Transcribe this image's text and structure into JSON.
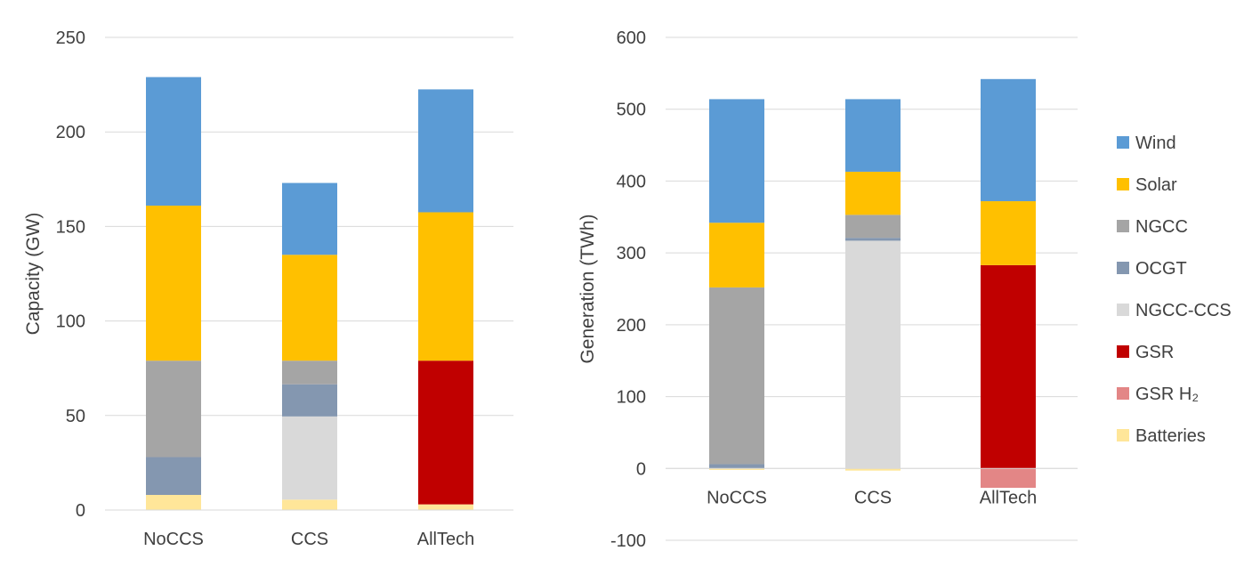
{
  "legend_placement": "right",
  "legend": [
    {
      "name": "Wind",
      "color": "#5b9bd5"
    },
    {
      "name": "Solar",
      "color": "#ffc000"
    },
    {
      "name": "NGCC",
      "color": "#a5a5a5"
    },
    {
      "name": "OCGT",
      "color": "#8497b0"
    },
    {
      "name": "NGCC-CCS",
      "color": "#d9d9d9"
    },
    {
      "name": "GSR",
      "color": "#c00000"
    },
    {
      "name": "GSR H₂",
      "color": "#e38686"
    },
    {
      "name": "Batteries",
      "color": "#ffe699"
    }
  ],
  "chart_data": [
    {
      "type": "bar",
      "stacked": true,
      "title": "",
      "xlabel": "",
      "ylabel": "Capacity (GW)",
      "ylim": [
        0,
        250
      ],
      "yticks": [
        0,
        50,
        100,
        150,
        200,
        250
      ],
      "grid": true,
      "categories": [
        "NoCCS",
        "CCS",
        "AllTech"
      ],
      "series": [
        {
          "name": "Batteries",
          "values": [
            8,
            5.5,
            3
          ]
        },
        {
          "name": "GSR",
          "values": [
            0,
            0,
            76
          ]
        },
        {
          "name": "NGCC-CCS",
          "values": [
            0,
            44,
            0
          ]
        },
        {
          "name": "OCGT",
          "values": [
            20,
            17,
            0
          ]
        },
        {
          "name": "NGCC",
          "values": [
            51,
            12.5,
            0
          ]
        },
        {
          "name": "Solar",
          "values": [
            82,
            56,
            78.5
          ]
        },
        {
          "name": "Wind",
          "values": [
            68,
            38,
            65
          ]
        }
      ]
    },
    {
      "type": "bar",
      "stacked": true,
      "title": "",
      "xlabel": "",
      "ylabel": "Generation (TWh)",
      "ylim": [
        -100,
        600
      ],
      "yticks": [
        -100,
        0,
        100,
        200,
        300,
        400,
        500,
        600
      ],
      "grid": true,
      "categories": [
        "NoCCS",
        "CCS",
        "AllTech"
      ],
      "series": [
        {
          "name": "Batteries",
          "values": [
            -2,
            -3,
            0
          ]
        },
        {
          "name": "GSR H₂",
          "values": [
            0,
            0,
            -27
          ]
        },
        {
          "name": "GSR",
          "values": [
            0,
            0,
            283
          ]
        },
        {
          "name": "NGCC-CCS",
          "values": [
            0,
            317,
            0
          ]
        },
        {
          "name": "OCGT",
          "values": [
            6,
            4,
            0
          ]
        },
        {
          "name": "NGCC",
          "values": [
            246,
            32,
            0
          ]
        },
        {
          "name": "Solar",
          "values": [
            90,
            60,
            89
          ]
        },
        {
          "name": "Wind",
          "values": [
            172,
            101,
            170
          ]
        }
      ]
    }
  ]
}
